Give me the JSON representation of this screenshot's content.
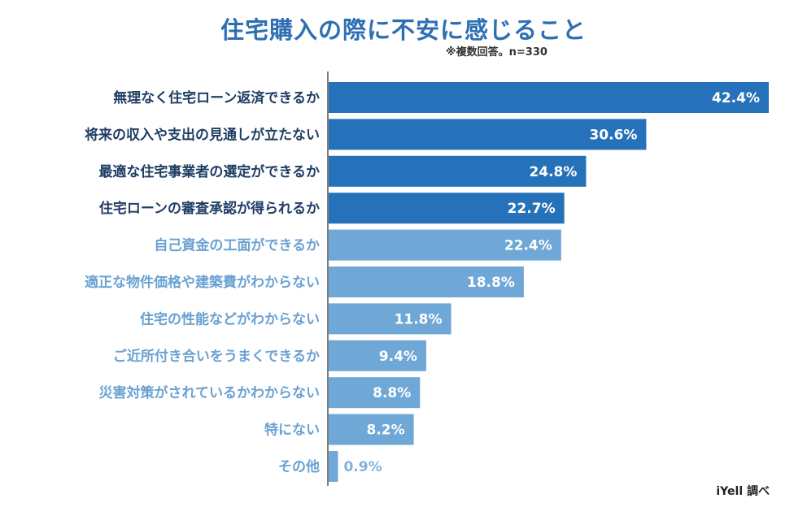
{
  "title": "住宅購入の際に不安に感じること",
  "note": "※複数回答。n=330",
  "source": "iYell 調べ",
  "colors": {
    "title": "#2e6fb4",
    "bar_dark": "#2672ba",
    "bar_light": "#6fa8d6",
    "label_dark": "#1f3d63",
    "label_light": "#6aa1d2",
    "value_outside": "#7fb2dd",
    "axis": "#555555"
  },
  "chart_data": {
    "type": "bar",
    "orientation": "horizontal",
    "title": "住宅購入の際に不安に感じること",
    "unit": "%",
    "categories": [
      "無理なく住宅ローン返済できるか",
      "将来の収入や支出の見通しが立たない",
      "最適な住宅事業者の選定ができるか",
      "住宅ローンの審査承認が得られるか",
      "自己資金の工面ができるか",
      "適正な物件価格や建築費がわからない",
      "住宅の性能などがわからない",
      "ご近所付き合いをうまくできるか",
      "災害対策がされているかわからない",
      "特にない",
      "その他"
    ],
    "values": [
      42.4,
      30.6,
      24.8,
      22.7,
      22.4,
      18.8,
      11.8,
      9.4,
      8.8,
      8.2,
      0.9
    ],
    "labels": [
      "42.4%",
      "30.6%",
      "24.8%",
      "22.7%",
      "22.4%",
      "18.8%",
      "11.8%",
      "9.4%",
      "8.8%",
      "8.2%",
      "0.9%"
    ],
    "highlight_count": 4,
    "xlim": [
      0,
      42.4
    ]
  }
}
